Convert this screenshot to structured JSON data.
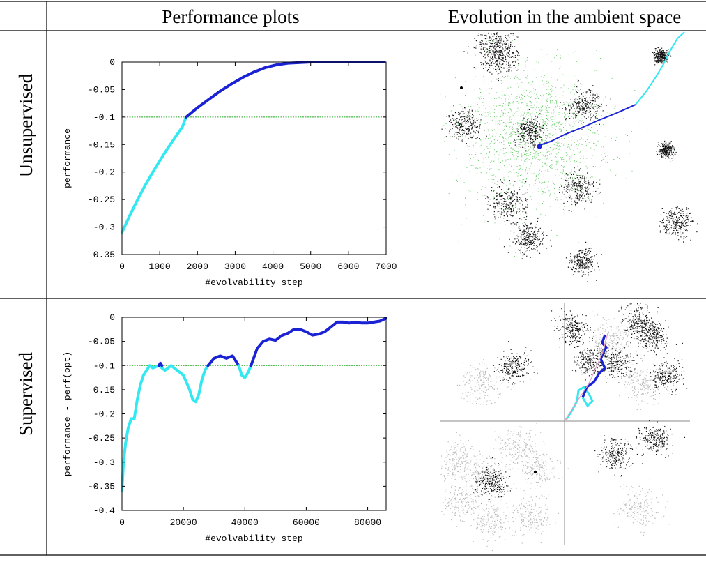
{
  "headers": {
    "performance_plots": "Performance plots",
    "evolution": "Evolution in the ambient space"
  },
  "rows": {
    "unsupervised": "Unsupervised",
    "supervised": "Supervised"
  },
  "colors": {
    "phase1": "#33e8f0",
    "phase2": "#1a22d4",
    "threshold": "#22aa22",
    "scatter_dark": "#111111",
    "scatter_green": "#66cc66",
    "scatter_gray": "#bbbbbb",
    "pink_path": "#e8a0c0"
  },
  "chart_data": [
    {
      "type": "line",
      "xlabel": "#evolvability step",
      "ylabel": "performance",
      "xlim": [
        0,
        7000
      ],
      "ylim": [
        -0.35,
        0
      ],
      "xticks": [
        0,
        1000,
        2000,
        3000,
        4000,
        5000,
        6000,
        7000
      ],
      "yticks": [
        0,
        -0.05,
        -0.1,
        -0.15,
        -0.2,
        -0.25,
        -0.3,
        -0.35
      ],
      "ytick_labels": [
        "0",
        "-0.05",
        "-0.1",
        "-0.15",
        "-0.2",
        "-0.25",
        "-0.3",
        "-0.35"
      ],
      "threshold": -0.1,
      "series": [
        {
          "color": "#33e8f0",
          "x": [
            0,
            200,
            400,
            600,
            800,
            1000,
            1200,
            1400,
            1600,
            1700
          ],
          "y": [
            -0.31,
            -0.28,
            -0.252,
            -0.226,
            -0.202,
            -0.18,
            -0.158,
            -0.138,
            -0.118,
            -0.1
          ]
        },
        {
          "color": "#1a22d4",
          "x": [
            1700,
            2000,
            2300,
            2600,
            2900,
            3200,
            3500,
            3800,
            4100,
            4400,
            5000,
            5500,
            6000,
            6500,
            6950
          ],
          "y": [
            -0.1,
            -0.083,
            -0.068,
            -0.053,
            -0.04,
            -0.028,
            -0.018,
            -0.01,
            -0.005,
            -0.002,
            0,
            0,
            0,
            0,
            0
          ]
        }
      ]
    },
    {
      "type": "line",
      "xlabel": "#evolvability step",
      "ylabel": "performance - perf(opt)",
      "xlim": [
        0,
        86000
      ],
      "ylim": [
        -0.4,
        0
      ],
      "xticks": [
        0,
        20000,
        40000,
        60000,
        80000
      ],
      "yticks": [
        0,
        -0.05,
        -0.1,
        -0.15,
        -0.2,
        -0.25,
        -0.3,
        -0.35,
        -0.4
      ],
      "ytick_labels": [
        "0",
        "-0.05",
        "-0.1",
        "-0.15",
        "-0.2",
        "-0.25",
        "-0.3",
        "-0.35",
        "-0.4"
      ],
      "threshold": -0.1,
      "series": [
        {
          "color": "#33e8f0",
          "x": [
            0,
            500,
            1200,
            2000,
            3000,
            4000,
            5000,
            6000,
            7000,
            8000,
            9000,
            10000,
            12000,
            14000,
            16000,
            18000,
            20000,
            22000,
            23000,
            24000,
            25000,
            26000,
            27000,
            28000
          ],
          "y": [
            -0.36,
            -0.3,
            -0.26,
            -0.23,
            -0.21,
            -0.21,
            -0.17,
            -0.14,
            -0.12,
            -0.11,
            -0.1,
            -0.105,
            -0.1,
            -0.11,
            -0.1,
            -0.11,
            -0.12,
            -0.15,
            -0.17,
            -0.175,
            -0.16,
            -0.13,
            -0.11,
            -0.1
          ]
        },
        {
          "color": "#1a22d4",
          "x": [
            12000,
            12500,
            13000
          ],
          "y": [
            -0.1,
            -0.095,
            -0.1
          ]
        },
        {
          "color": "#1a22d4",
          "x": [
            28000,
            30000,
            32000,
            34000,
            36000,
            38000
          ],
          "y": [
            -0.1,
            -0.085,
            -0.08,
            -0.085,
            -0.08,
            -0.1
          ]
        },
        {
          "color": "#33e8f0",
          "x": [
            38000,
            39000,
            40000,
            41000,
            42000
          ],
          "y": [
            -0.1,
            -0.12,
            -0.125,
            -0.115,
            -0.1
          ]
        },
        {
          "color": "#1a22d4",
          "x": [
            42000,
            44000,
            46000,
            48000,
            50000,
            52000,
            54000,
            56000,
            58000,
            60000,
            62000,
            64000,
            66000,
            68000,
            70000,
            72000,
            74000,
            76000,
            78000,
            80000,
            82000,
            84000,
            86000
          ],
          "y": [
            -0.1,
            -0.065,
            -0.05,
            -0.045,
            -0.048,
            -0.038,
            -0.033,
            -0.025,
            -0.025,
            -0.03,
            -0.037,
            -0.035,
            -0.03,
            -0.02,
            -0.01,
            -0.01,
            -0.012,
            -0.01,
            -0.012,
            -0.012,
            -0.01,
            -0.008,
            -0.002
          ]
        }
      ]
    }
  ]
}
